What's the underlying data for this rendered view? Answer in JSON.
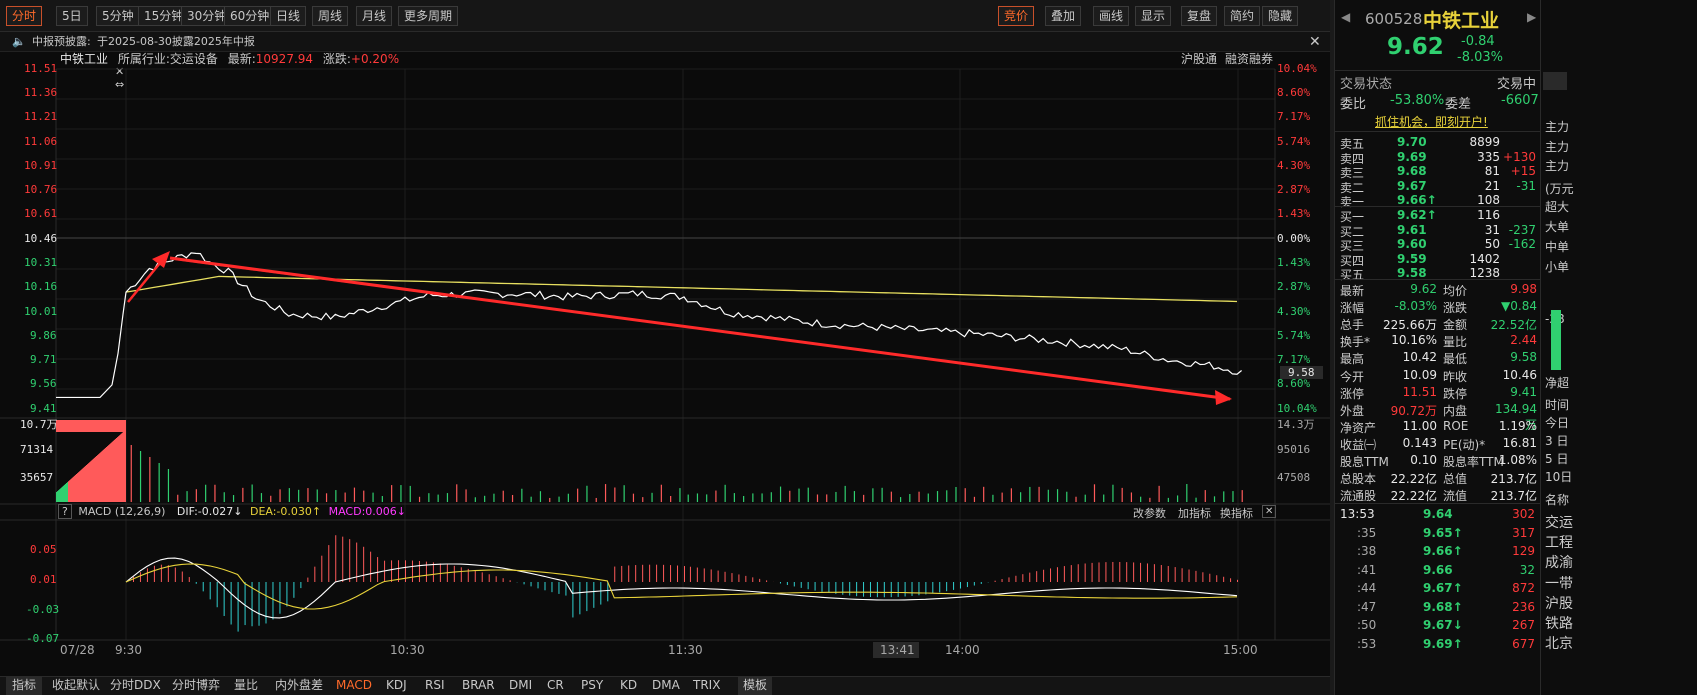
{
  "toolbar": {
    "tabs": [
      "分时",
      "5日",
      "5分钟",
      "15分钟",
      "30分钟",
      "60分钟",
      "日线",
      "周线",
      "月线",
      "更多周期"
    ],
    "right": [
      "竞价",
      "叠加",
      "画线",
      "显示",
      "复盘",
      "简约",
      "隐藏"
    ]
  },
  "news": {
    "label": "中报预披露:",
    "text": "于2025-08-30披露2025年中报"
  },
  "info": {
    "name": "中铁工业",
    "industry_label": "所属行业:",
    "industry": "交运设备",
    "latest_label": "最新:",
    "latest": "10927.94",
    "chg_label": "涨跌:",
    "chg": "+0.20%",
    "links": [
      "沪股通",
      "融资融券"
    ]
  },
  "price_axis": {
    "left": [
      "11.51",
      "11.36",
      "11.21",
      "11.06",
      "10.91",
      "10.76",
      "10.61",
      "10.46",
      "10.31",
      "10.16",
      "10.01",
      "9.86",
      "9.71",
      "9.56",
      "9.41"
    ],
    "right": [
      "10.04%",
      "8.60%",
      "7.17%",
      "5.74%",
      "4.30%",
      "2.87%",
      "1.43%",
      "0.00%",
      "1.43%",
      "2.87%",
      "4.30%",
      "5.74%",
      "7.17%",
      "8.60%",
      "10.04%"
    ],
    "cursor": "9.58"
  },
  "vol_axis": {
    "left": [
      "10.7万",
      "71314",
      "35657"
    ],
    "right": [
      "14.3万",
      "95016",
      "47508"
    ]
  },
  "macd": {
    "title": "MACD (12,26,9)",
    "dif": "DIF:-0.027↓",
    "dea": "DEA:-0.030↑",
    "macd": "MACD:0.006↓",
    "buttons": [
      "改参数",
      "加指标",
      "换指标"
    ],
    "axis": [
      "0.05",
      "0.01",
      "-0.03",
      "-0.07"
    ]
  },
  "time_axis": {
    "date": "07/28",
    "ticks": [
      "9:30",
      "10:30",
      "11:30",
      "14:00",
      "15:00"
    ],
    "cursor": "13:41"
  },
  "bottom_tabs": [
    "指标",
    "收起默认",
    "分时DDX",
    "分时博弈",
    "量比",
    "内外盘差",
    "MACD",
    "KDJ",
    "RSI",
    "BRAR",
    "DMI",
    "CR",
    "PSY",
    "KD",
    "DMA",
    "TRIX",
    "模板"
  ],
  "stock": {
    "code": "600528",
    "name": "中铁工业",
    "price": "9.62",
    "chg": "-0.84",
    "pct": "-8.03%"
  },
  "status": {
    "label": "交易状态",
    "value": "交易中",
    "wb_label": "委比",
    "wb": "-53.80%",
    "wc_label": "委差",
    "wc": "-6607",
    "promo": "抓住机会，即刻开户!"
  },
  "sell": [
    {
      "l": "卖五",
      "p": "9.70",
      "v": "8899",
      "d": ""
    },
    {
      "l": "卖四",
      "p": "9.69",
      "v": "335",
      "d": "+130"
    },
    {
      "l": "卖三",
      "p": "9.68",
      "v": "81",
      "d": "+15"
    },
    {
      "l": "卖二",
      "p": "9.67",
      "v": "21",
      "d": "-31"
    },
    {
      "l": "卖一",
      "p": "9.66↑",
      "v": "108",
      "d": ""
    }
  ],
  "buy": [
    {
      "l": "买一",
      "p": "9.62↑",
      "v": "116",
      "d": ""
    },
    {
      "l": "买二",
      "p": "9.61",
      "v": "31",
      "d": "-237"
    },
    {
      "l": "买三",
      "p": "9.60",
      "v": "50",
      "d": "-162"
    },
    {
      "l": "买四",
      "p": "9.59",
      "v": "1402",
      "d": ""
    },
    {
      "l": "买五",
      "p": "9.58",
      "v": "1238",
      "d": ""
    }
  ],
  "stats": [
    [
      "最新",
      "9.62",
      "均价",
      "9.98"
    ],
    [
      "涨幅",
      "-8.03%",
      "涨跌",
      "▼0.84"
    ],
    [
      "总手",
      "225.66万",
      "金额",
      "22.52亿"
    ],
    [
      "换手*",
      "10.16%",
      "量比",
      "2.44"
    ],
    [
      "最高",
      "10.42",
      "最低",
      "9.58"
    ],
    [
      "今开",
      "10.09",
      "昨收",
      "10.46"
    ],
    [
      "涨停",
      "11.51",
      "跌停",
      "9.41"
    ],
    [
      "外盘",
      "90.72万",
      "内盘",
      "134.94万"
    ],
    [
      "净资产",
      "11.00",
      "ROE",
      "1.19%"
    ],
    [
      "收益㈠",
      "0.143",
      "PE(动)*",
      "16.81"
    ],
    [
      "股息TTM",
      "0.10",
      "股息率TTM",
      "1.08%"
    ],
    [
      "总股本",
      "22.22亿",
      "总值",
      "213.7亿"
    ],
    [
      "流通股",
      "22.22亿",
      "流值",
      "213.7亿"
    ]
  ],
  "ticks": [
    [
      "13:53",
      "9.64",
      "302"
    ],
    [
      ":35",
      "9.65↑",
      "317"
    ],
    [
      ":38",
      "9.66↑",
      "129"
    ],
    [
      ":41",
      "9.66",
      "32"
    ],
    [
      ":44",
      "9.67↑",
      "872"
    ],
    [
      ":47",
      "9.68↑",
      "236"
    ],
    [
      ":50",
      "9.67↓",
      "267"
    ],
    [
      ":53",
      "9.69↑",
      "677"
    ]
  ],
  "side": [
    "主力",
    "主力",
    "主力",
    "(万元",
    "超大",
    "大单",
    "中单",
    "小单",
    "-28",
    "净超",
    "时间",
    "今日",
    "3 日",
    "5 日",
    "10日",
    "名称",
    "交运",
    "工程",
    "成渝",
    "一带",
    "沪股",
    "铁路",
    "北京"
  ],
  "chart_data": {
    "type": "line",
    "series": [
      {
        "name": "price",
        "x": [
          "9:30",
          "9:40",
          "9:45",
          "9:50",
          "10:00",
          "10:10",
          "10:30",
          "11:00",
          "11:30",
          "13:00",
          "13:20",
          "13:41"
        ],
        "values": [
          10.09,
          10.28,
          10.35,
          10.3,
          10.02,
          9.93,
          10.08,
          10.09,
          10.04,
          9.86,
          9.73,
          9.58
        ]
      },
      {
        "name": "avg",
        "values": [
          10.09,
          10.18,
          10.19,
          10.18,
          10.14,
          10.12,
          10.11,
          10.1,
          10.09,
          10.07,
          10.05,
          10.03
        ]
      }
    ],
    "ylim": [
      9.41,
      11.51
    ]
  }
}
